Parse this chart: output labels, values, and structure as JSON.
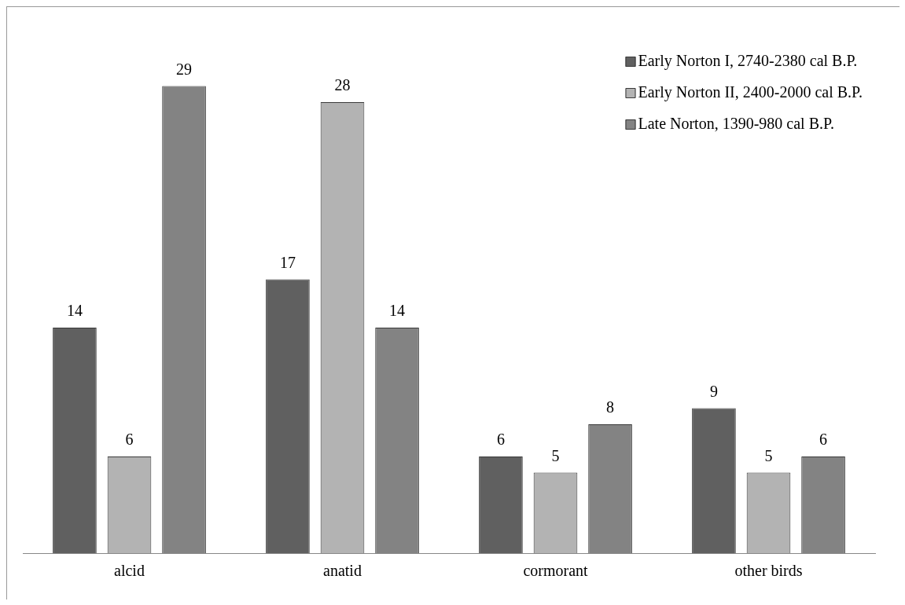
{
  "chart_data": {
    "type": "bar",
    "categories": [
      "alcid",
      "anatid",
      "cormorant",
      "other birds"
    ],
    "series": [
      {
        "name": "Early Norton I, 2740-2380 cal B.P.",
        "color": "#606060",
        "values": [
          14,
          17,
          6,
          9
        ]
      },
      {
        "name": "Early Norton II, 2400-2000 cal B.P.",
        "color": "#b3b3b3",
        "values": [
          6,
          28,
          5,
          5
        ]
      },
      {
        "name": "Late Norton, 1390-980 cal B.P.",
        "color": "#838383",
        "values": [
          29,
          14,
          8,
          6
        ]
      }
    ],
    "data_labels": true,
    "legend": "top right",
    "grid": false,
    "tick_labels": "x"
  }
}
